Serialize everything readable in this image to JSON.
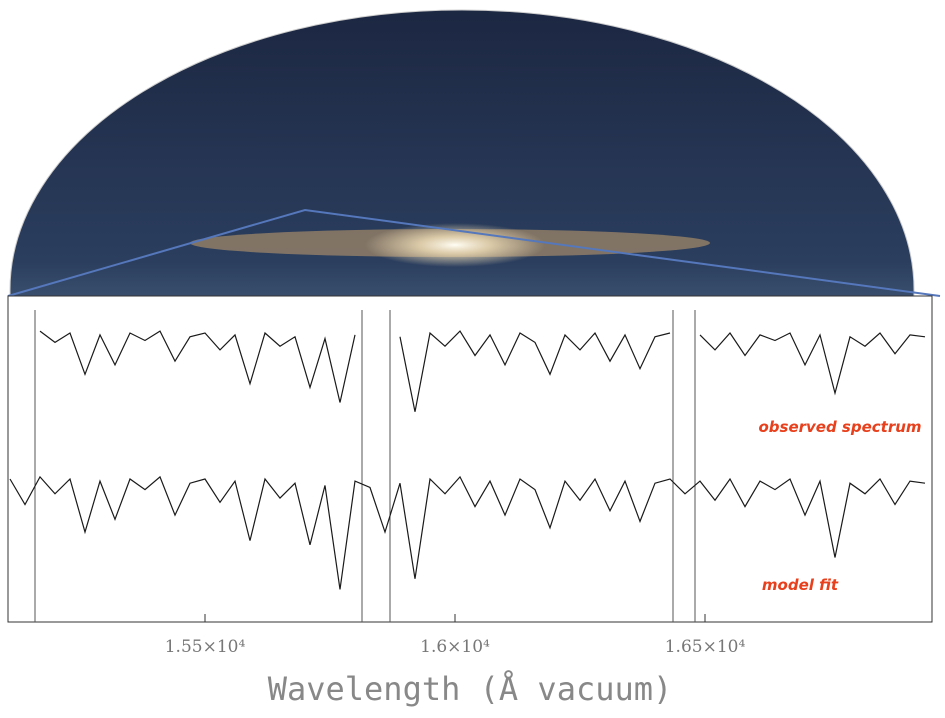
{
  "chart_data": {
    "type": "line",
    "xlabel": "Wavelength (Å vacuum)",
    "x": [
      15110,
      15140,
      15170,
      15200,
      15230,
      15260,
      15290,
      15320,
      15350,
      15380,
      15410,
      15440,
      15470,
      15500,
      15530,
      15560,
      15590,
      15620,
      15650,
      15680,
      15710,
      15740,
      15770,
      15800,
      15830,
      15860,
      15890,
      15920,
      15950,
      15980,
      16010,
      16040,
      16070,
      16100,
      16130,
      16160,
      16190,
      16220,
      16250,
      16280,
      16310,
      16340,
      16370,
      16400,
      16430,
      16460,
      16490,
      16520,
      16550,
      16580,
      16610,
      16640,
      16670,
      16700,
      16730,
      16760,
      16790,
      16820,
      16850,
      16880,
      16910,
      16940
    ],
    "series": [
      {
        "name": "observed spectrum",
        "color": "#1a1a1a",
        "values": [
          null,
          null,
          0.98,
          0.92,
          0.97,
          0.75,
          0.96,
          0.8,
          0.97,
          0.93,
          0.98,
          0.82,
          0.95,
          0.97,
          0.88,
          0.96,
          0.7,
          0.97,
          0.9,
          0.95,
          0.68,
          0.94,
          0.6,
          0.96,
          null,
          null,
          0.95,
          0.55,
          0.97,
          0.9,
          0.98,
          0.85,
          0.96,
          0.8,
          0.97,
          0.92,
          0.75,
          0.96,
          0.88,
          0.97,
          0.82,
          0.96,
          0.78,
          0.95,
          0.97,
          null,
          0.96,
          0.88,
          0.97,
          0.85,
          0.96,
          0.93,
          0.97,
          0.8,
          0.96,
          0.65,
          0.95,
          0.9,
          0.97,
          0.86,
          0.96,
          0.95
        ]
      },
      {
        "name": "model fit",
        "color": "#1a1a1a",
        "values": [
          0.97,
          0.85,
          0.98,
          0.9,
          0.97,
          0.72,
          0.96,
          0.78,
          0.97,
          0.92,
          0.98,
          0.8,
          0.95,
          0.97,
          0.86,
          0.96,
          0.68,
          0.97,
          0.88,
          0.95,
          0.66,
          0.94,
          0.45,
          0.96,
          0.93,
          0.72,
          0.95,
          0.5,
          0.97,
          0.9,
          0.98,
          0.84,
          0.96,
          0.8,
          0.97,
          0.92,
          0.74,
          0.96,
          0.87,
          0.97,
          0.82,
          0.96,
          0.77,
          0.95,
          0.97,
          0.9,
          0.96,
          0.87,
          0.97,
          0.84,
          0.96,
          0.92,
          0.97,
          0.8,
          0.96,
          0.6,
          0.95,
          0.9,
          0.97,
          0.85,
          0.96,
          0.95
        ]
      }
    ],
    "xlim": [
      15106,
      16954
    ],
    "ylim": [
      0.4,
      1.05
    ],
    "xticks": [
      {
        "value": 15500,
        "label": "1.55×10⁴"
      },
      {
        "value": 16000,
        "label": "1.6×10⁴"
      },
      {
        "value": 16500,
        "label": "1.65×10⁴"
      }
    ]
  }
}
